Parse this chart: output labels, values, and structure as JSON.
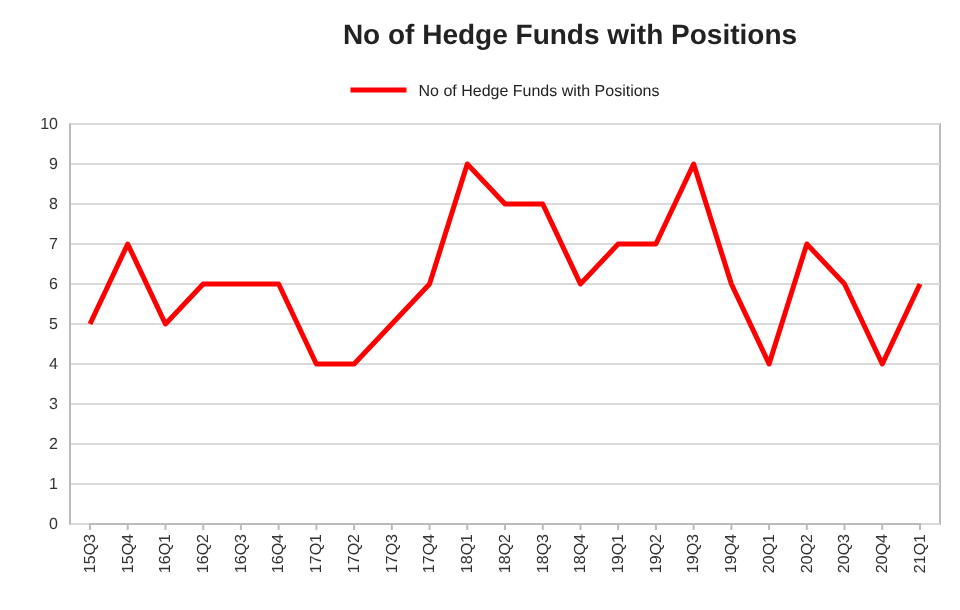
{
  "chart_data": {
    "type": "line",
    "title": "No of Hedge Funds with Positions",
    "categories": [
      "15Q3",
      "15Q4",
      "16Q1",
      "16Q2",
      "16Q3",
      "16Q4",
      "17Q1",
      "17Q2",
      "17Q3",
      "17Q4",
      "18Q1",
      "18Q2",
      "18Q3",
      "18Q4",
      "19Q1",
      "19Q2",
      "19Q3",
      "19Q4",
      "20Q1",
      "20Q2",
      "20Q3",
      "20Q4",
      "21Q1"
    ],
    "series": [
      {
        "name": "No of Hedge Funds with Positions",
        "color": "#ff0000",
        "values": [
          5,
          7,
          5,
          6,
          6,
          6,
          4,
          4,
          5,
          6,
          9,
          8,
          8,
          6,
          7,
          7,
          9,
          6,
          4,
          7,
          6,
          4,
          6
        ]
      }
    ],
    "ylim": [
      0,
      10
    ],
    "yticks": [
      0,
      1,
      2,
      3,
      4,
      5,
      6,
      7,
      8,
      9,
      10
    ],
    "grid": "y",
    "legend": "top",
    "marker": "none",
    "line_style": "solid"
  }
}
